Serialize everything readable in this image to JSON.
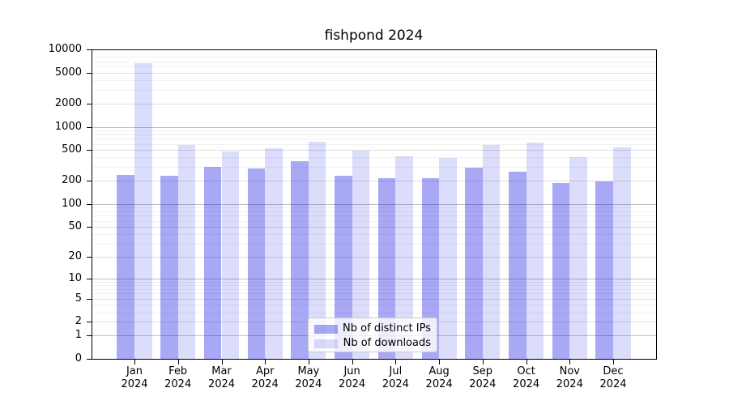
{
  "title": "fishpond 2024",
  "chart_data": {
    "type": "bar",
    "title": "fishpond 2024",
    "categories": [
      "Jan",
      "Feb",
      "Mar",
      "Apr",
      "May",
      "Jun",
      "Jul",
      "Aug",
      "Sep",
      "Oct",
      "Nov",
      "Dec"
    ],
    "category_year": "2024",
    "series": [
      {
        "name": "Nb of distinct IPs",
        "color": "rgba(18,18,228,0.37)",
        "solid_color_hex": "#a8a8f4",
        "values": [
          237,
          232,
          300,
          288,
          358,
          232,
          216,
          216,
          295,
          261,
          187,
          195
        ]
      },
      {
        "name": "Nb of downloads",
        "color": "rgba(18,18,228,0.15)",
        "solid_color_hex": "#dadaf9",
        "values": [
          6690,
          580,
          480,
          527,
          640,
          490,
          414,
          395,
          580,
          625,
          404,
          540
        ]
      }
    ],
    "yscale": "log1p",
    "yticks": [
      0,
      1,
      2,
      5,
      10,
      20,
      50,
      100,
      200,
      500,
      1000,
      2000,
      5000,
      10000
    ],
    "ylim": [
      0,
      10000
    ],
    "xlabel": "",
    "ylabel": "",
    "grid": true,
    "legend_position": "lower center"
  }
}
